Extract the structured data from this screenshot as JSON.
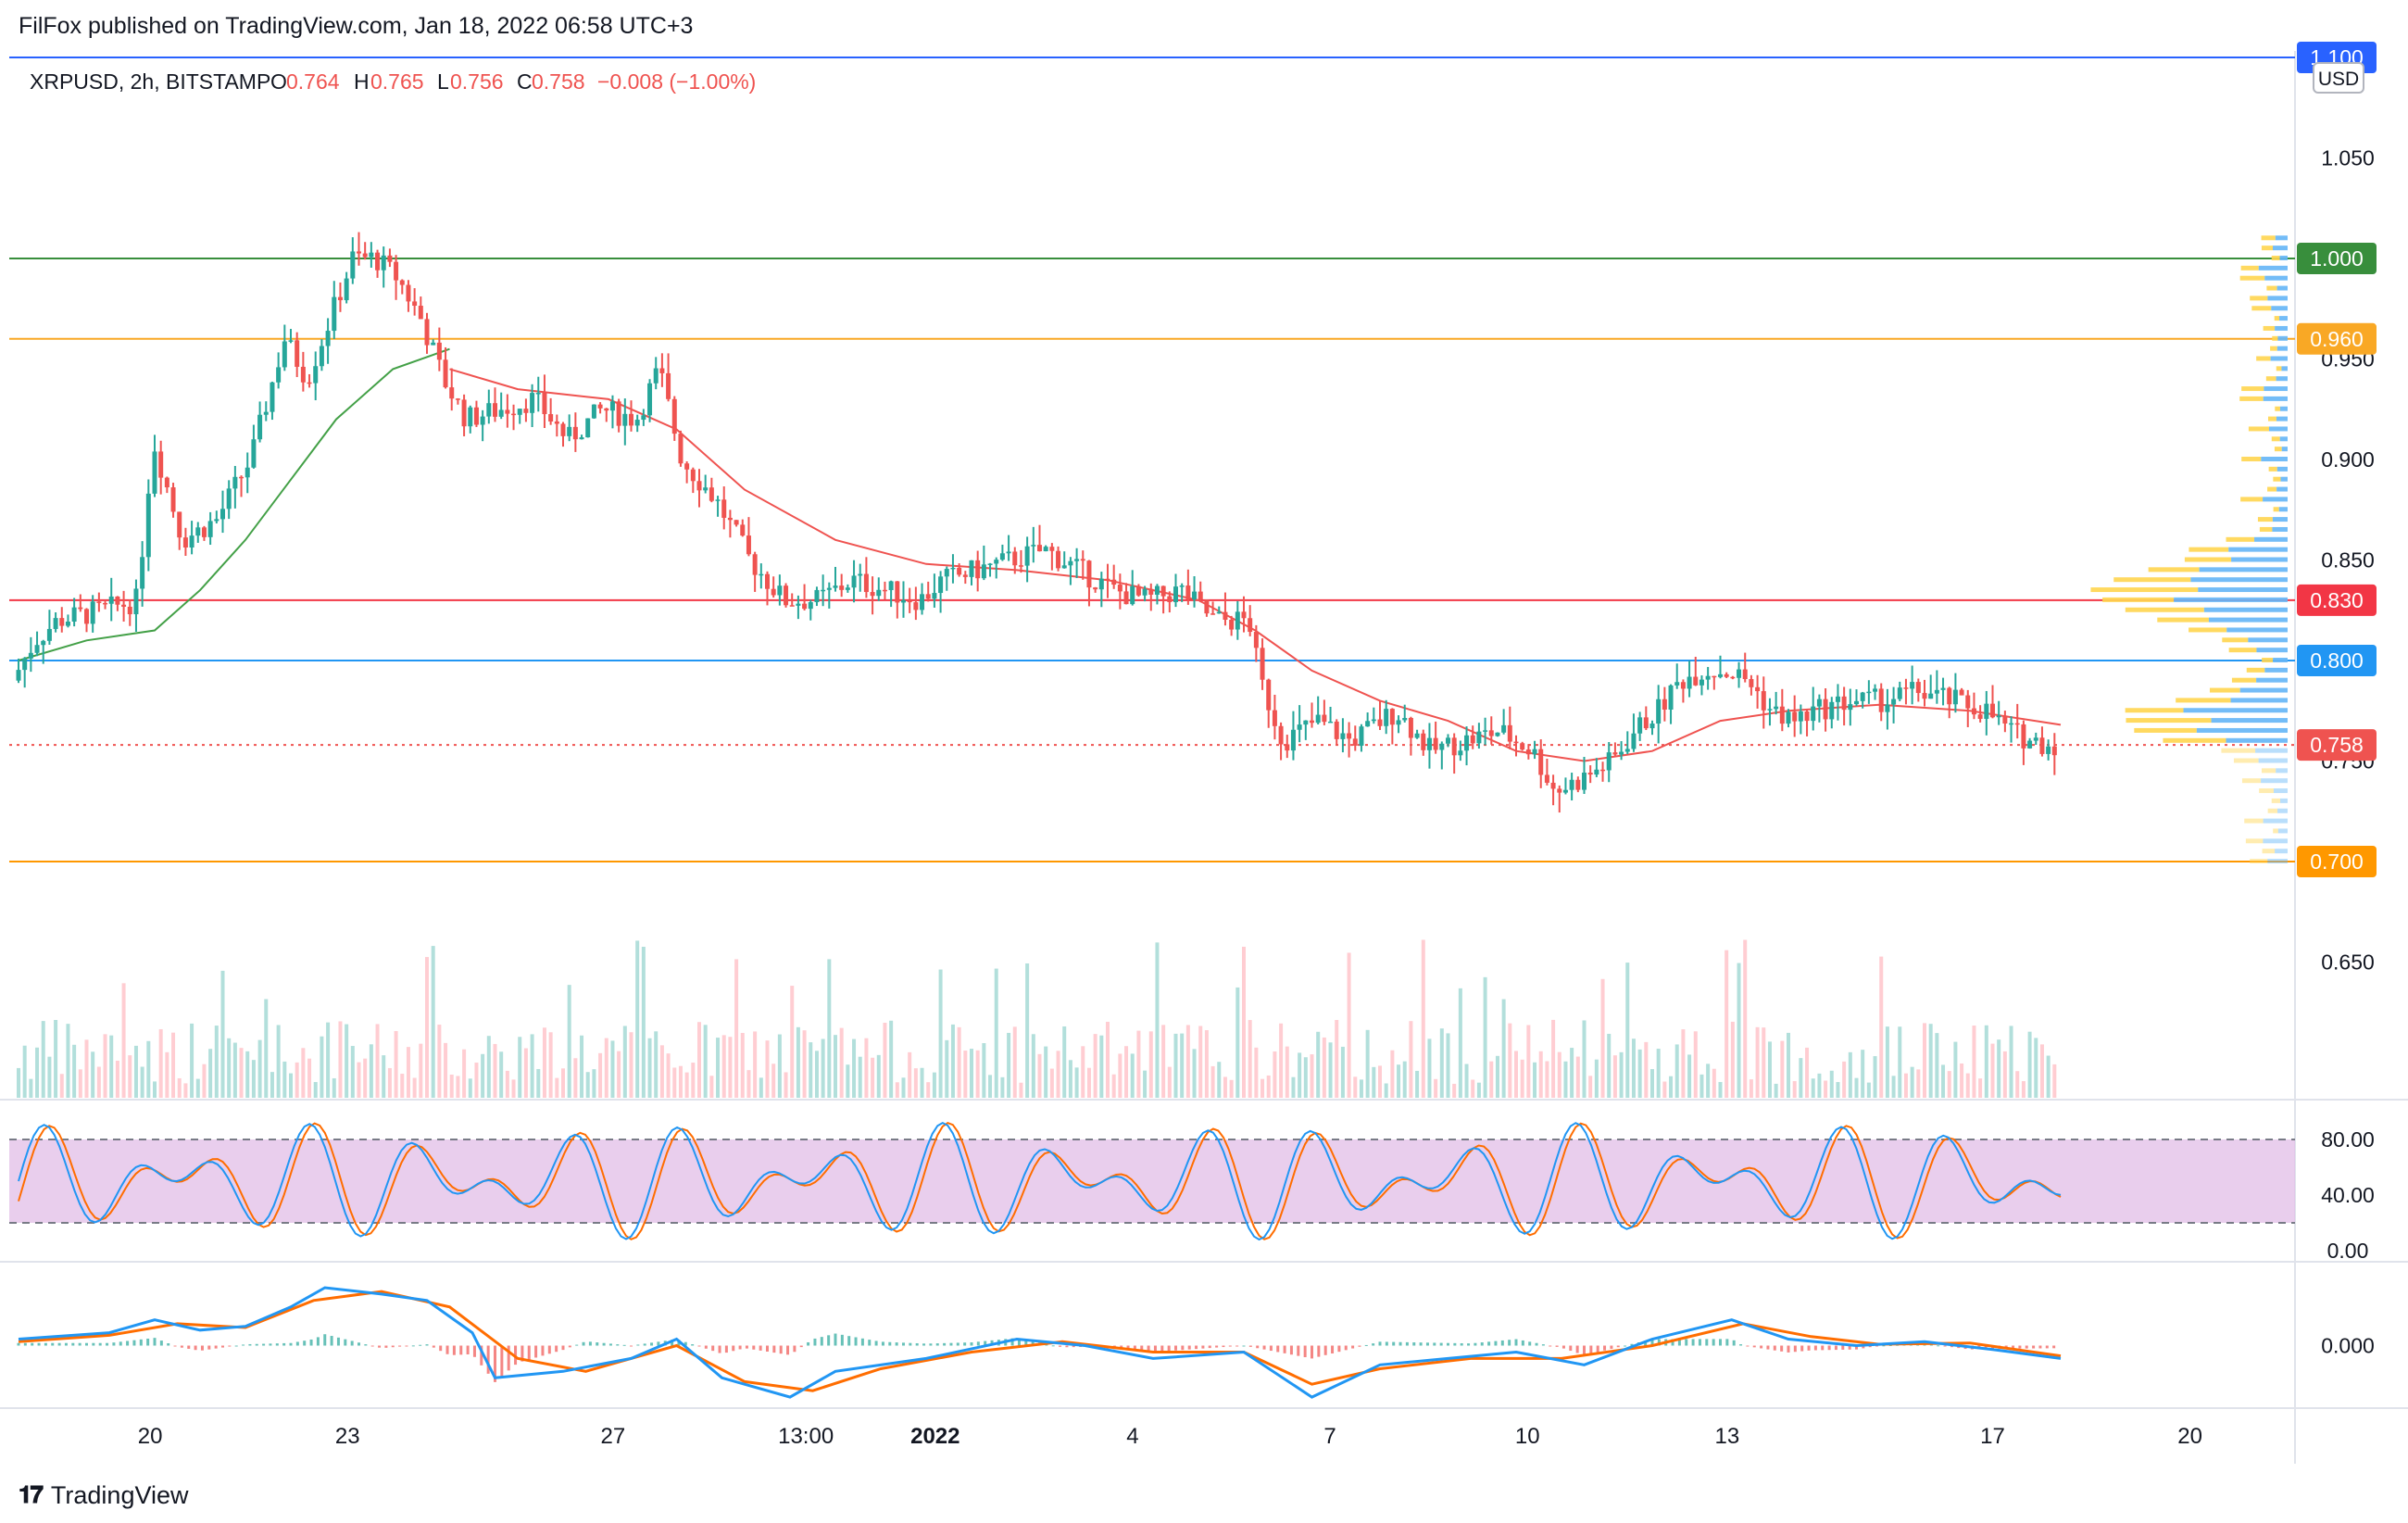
{
  "header": {
    "published": "FilFox published on TradingView.com, Jan 18, 2022 06:58 UTC+3"
  },
  "legend": {
    "symbol": "XRPUSD, 2h, BITSTAMP",
    "open_label": "O",
    "open": "0.764",
    "high_label": "H",
    "high": "0.765",
    "low_label": "L",
    "low": "0.756",
    "close_label": "C",
    "close": "0.758",
    "change": "−0.008 (−1.00%)"
  },
  "footer": {
    "brand": "TradingView"
  },
  "chart_data": {
    "type": "candlestick",
    "symbol": "XRPUSD",
    "interval": "2h",
    "exchange": "BITSTAMP",
    "currency": "USD",
    "ylim": [
      0.6,
      1.1
    ],
    "y_ticks": [
      "1.050",
      "0.950",
      "0.900",
      "0.850",
      "0.750",
      "0.650"
    ],
    "x_ticks": [
      {
        "label": "20",
        "pos": 0.058
      },
      {
        "label": "23",
        "pos": 0.145
      },
      {
        "label": "27",
        "pos": 0.262
      },
      {
        "label": "13:00",
        "pos": 0.347
      },
      {
        "label": "2022",
        "pos": 0.404,
        "bold": true
      },
      {
        "label": "4",
        "pos": 0.491
      },
      {
        "label": "7",
        "pos": 0.578
      },
      {
        "label": "10",
        "pos": 0.665
      },
      {
        "label": "13",
        "pos": 0.753
      },
      {
        "label": "17",
        "pos": 0.87
      },
      {
        "label": "20",
        "pos": 0.957
      }
    ],
    "horizontal_levels": [
      {
        "value": 1.1,
        "label": "1.100",
        "color": "#2962ff"
      },
      {
        "value": 1.0,
        "label": "1.000",
        "color": "#388e3c"
      },
      {
        "value": 0.96,
        "label": "0.960",
        "color": "#f9a825"
      },
      {
        "value": 0.83,
        "label": "0.830",
        "color": "#f23645"
      },
      {
        "value": 0.8,
        "label": "0.800",
        "color": "#2196f3"
      },
      {
        "value": 0.7,
        "label": "0.700",
        "color": "#ff9800"
      }
    ],
    "last_price": {
      "value": 0.758,
      "label": "0.758",
      "color": "#ef5350"
    },
    "colors": {
      "up": "#26a69a",
      "down": "#ef5350",
      "ma_fast": "#43a047",
      "ma_slow": "#ef5350"
    },
    "price_path": [
      [
        0.0,
        0.79
      ],
      [
        0.01,
        0.81
      ],
      [
        0.02,
        0.82
      ],
      [
        0.04,
        0.825
      ],
      [
        0.055,
        0.83
      ],
      [
        0.062,
        0.91
      ],
      [
        0.075,
        0.86
      ],
      [
        0.09,
        0.87
      ],
      [
        0.105,
        0.9
      ],
      [
        0.12,
        0.96
      ],
      [
        0.13,
        0.94
      ],
      [
        0.14,
        0.97
      ],
      [
        0.15,
        1.0
      ],
      [
        0.16,
        1.0
      ],
      [
        0.17,
        0.99
      ],
      [
        0.18,
        0.97
      ],
      [
        0.19,
        0.94
      ],
      [
        0.2,
        0.92
      ],
      [
        0.215,
        0.925
      ],
      [
        0.23,
        0.93
      ],
      [
        0.245,
        0.91
      ],
      [
        0.26,
        0.925
      ],
      [
        0.275,
        0.92
      ],
      [
        0.285,
        0.945
      ],
      [
        0.295,
        0.9
      ],
      [
        0.31,
        0.88
      ],
      [
        0.325,
        0.85
      ],
      [
        0.34,
        0.83
      ],
      [
        0.355,
        0.83
      ],
      [
        0.37,
        0.84
      ],
      [
        0.385,
        0.835
      ],
      [
        0.4,
        0.83
      ],
      [
        0.41,
        0.84
      ],
      [
        0.425,
        0.845
      ],
      [
        0.44,
        0.85
      ],
      [
        0.455,
        0.855
      ],
      [
        0.47,
        0.845
      ],
      [
        0.485,
        0.835
      ],
      [
        0.5,
        0.83
      ],
      [
        0.515,
        0.835
      ],
      [
        0.53,
        0.82
      ],
      [
        0.545,
        0.82
      ],
      [
        0.55,
        0.79
      ],
      [
        0.56,
        0.76
      ],
      [
        0.575,
        0.77
      ],
      [
        0.59,
        0.76
      ],
      [
        0.61,
        0.775
      ],
      [
        0.625,
        0.755
      ],
      [
        0.64,
        0.76
      ],
      [
        0.655,
        0.765
      ],
      [
        0.67,
        0.755
      ],
      [
        0.68,
        0.735
      ],
      [
        0.69,
        0.74
      ],
      [
        0.705,
        0.75
      ],
      [
        0.715,
        0.765
      ],
      [
        0.725,
        0.775
      ],
      [
        0.735,
        0.79
      ],
      [
        0.745,
        0.795
      ],
      [
        0.755,
        0.795
      ],
      [
        0.765,
        0.79
      ],
      [
        0.775,
        0.775
      ],
      [
        0.785,
        0.77
      ],
      [
        0.795,
        0.775
      ],
      [
        0.81,
        0.78
      ],
      [
        0.825,
        0.78
      ],
      [
        0.84,
        0.785
      ],
      [
        0.855,
        0.78
      ],
      [
        0.87,
        0.775
      ],
      [
        0.88,
        0.765
      ],
      [
        0.89,
        0.76
      ],
      [
        0.9,
        0.758
      ]
    ],
    "ma_fast": [
      [
        0.0,
        0.8
      ],
      [
        0.03,
        0.81
      ],
      [
        0.06,
        0.815
      ],
      [
        0.08,
        0.835
      ],
      [
        0.1,
        0.86
      ],
      [
        0.12,
        0.89
      ],
      [
        0.14,
        0.92
      ],
      [
        0.165,
        0.945
      ],
      [
        0.19,
        0.955
      ]
    ],
    "ma_slow": [
      [
        0.19,
        0.945
      ],
      [
        0.22,
        0.935
      ],
      [
        0.26,
        0.93
      ],
      [
        0.29,
        0.915
      ],
      [
        0.32,
        0.885
      ],
      [
        0.36,
        0.86
      ],
      [
        0.4,
        0.848
      ],
      [
        0.44,
        0.845
      ],
      [
        0.48,
        0.84
      ],
      [
        0.52,
        0.83
      ],
      [
        0.545,
        0.815
      ],
      [
        0.57,
        0.795
      ],
      [
        0.6,
        0.78
      ],
      [
        0.63,
        0.77
      ],
      [
        0.66,
        0.755
      ],
      [
        0.69,
        0.75
      ],
      [
        0.72,
        0.755
      ],
      [
        0.75,
        0.77
      ],
      [
        0.78,
        0.775
      ],
      [
        0.82,
        0.778
      ],
      [
        0.86,
        0.775
      ],
      [
        0.9,
        0.768
      ]
    ],
    "stoch_rsi": {
      "ylim": [
        0,
        100
      ],
      "ticks": [
        "80.00",
        "40.00",
        "0.00"
      ],
      "band": [
        20,
        80
      ],
      "colors": {
        "k": "#2196f3",
        "d": "#ff6d00",
        "band": "#e1bee7"
      }
    },
    "macd": {
      "ticks": [
        "0.000"
      ],
      "colors": {
        "macd": "#2196f3",
        "signal": "#ff6d00",
        "hist_up": "#b2dfdb",
        "hist_down": "#ffcdd2"
      },
      "macd_path": [
        [
          0.0,
          0.005
        ],
        [
          0.04,
          0.01
        ],
        [
          0.06,
          0.02
        ],
        [
          0.08,
          0.012
        ],
        [
          0.1,
          0.015
        ],
        [
          0.12,
          0.03
        ],
        [
          0.135,
          0.045
        ],
        [
          0.16,
          0.04
        ],
        [
          0.18,
          0.035
        ],
        [
          0.2,
          0.01
        ],
        [
          0.21,
          -0.025
        ],
        [
          0.24,
          -0.02
        ],
        [
          0.27,
          -0.01
        ],
        [
          0.29,
          0.005
        ],
        [
          0.31,
          -0.025
        ],
        [
          0.34,
          -0.04
        ],
        [
          0.36,
          -0.02
        ],
        [
          0.4,
          -0.01
        ],
        [
          0.44,
          0.005
        ],
        [
          0.47,
          0.0
        ],
        [
          0.5,
          -0.01
        ],
        [
          0.54,
          -0.005
        ],
        [
          0.57,
          -0.04
        ],
        [
          0.6,
          -0.015
        ],
        [
          0.63,
          -0.01
        ],
        [
          0.66,
          -0.005
        ],
        [
          0.69,
          -0.015
        ],
        [
          0.72,
          0.005
        ],
        [
          0.755,
          0.02
        ],
        [
          0.78,
          0.005
        ],
        [
          0.81,
          0.0
        ],
        [
          0.84,
          0.003
        ],
        [
          0.87,
          -0.003
        ],
        [
          0.9,
          -0.01
        ]
      ],
      "signal_path": [
        [
          0.0,
          0.003
        ],
        [
          0.04,
          0.008
        ],
        [
          0.07,
          0.017
        ],
        [
          0.1,
          0.014
        ],
        [
          0.13,
          0.035
        ],
        [
          0.16,
          0.042
        ],
        [
          0.19,
          0.03
        ],
        [
          0.22,
          -0.01
        ],
        [
          0.25,
          -0.02
        ],
        [
          0.29,
          0.0
        ],
        [
          0.32,
          -0.028
        ],
        [
          0.35,
          -0.035
        ],
        [
          0.38,
          -0.018
        ],
        [
          0.42,
          -0.005
        ],
        [
          0.46,
          0.003
        ],
        [
          0.5,
          -0.005
        ],
        [
          0.54,
          -0.005
        ],
        [
          0.57,
          -0.03
        ],
        [
          0.6,
          -0.018
        ],
        [
          0.64,
          -0.01
        ],
        [
          0.68,
          -0.01
        ],
        [
          0.72,
          0.0
        ],
        [
          0.76,
          0.017
        ],
        [
          0.79,
          0.007
        ],
        [
          0.82,
          0.001
        ],
        [
          0.86,
          0.002
        ],
        [
          0.9,
          -0.008
        ]
      ]
    }
  }
}
